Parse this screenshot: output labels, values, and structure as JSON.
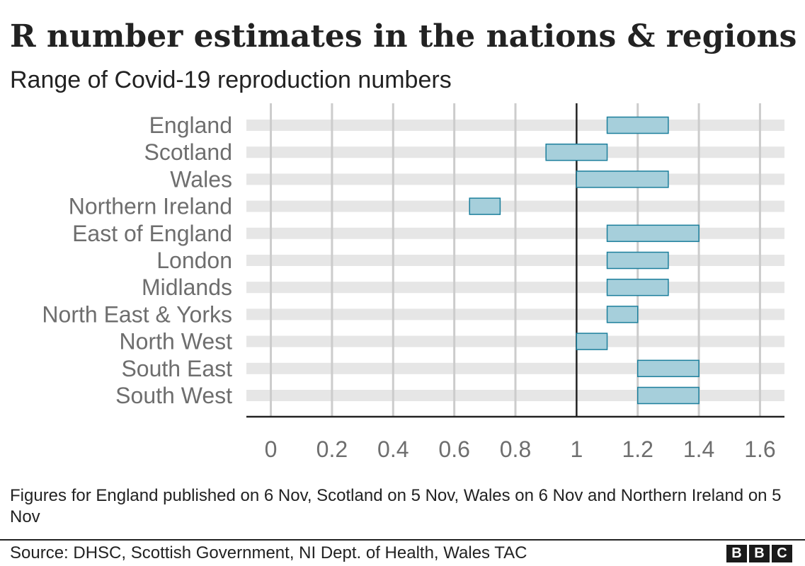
{
  "chart_data": {
    "type": "range-bar",
    "title": "R number estimates in the nations & regions",
    "subtitle": "Range of Covid-19 reproduction numbers",
    "categories": [
      "England",
      "Scotland",
      "Wales",
      "Northern Ireland",
      "East of England",
      "London",
      "Midlands",
      "North East & Yorks",
      "North West",
      "South East",
      "South West"
    ],
    "ranges": [
      {
        "low": 1.1,
        "high": 1.3
      },
      {
        "low": 0.9,
        "high": 1.1
      },
      {
        "low": 1.0,
        "high": 1.3
      },
      {
        "low": 0.65,
        "high": 0.75
      },
      {
        "low": 1.1,
        "high": 1.4
      },
      {
        "low": 1.1,
        "high": 1.3
      },
      {
        "low": 1.1,
        "high": 1.3
      },
      {
        "low": 1.1,
        "high": 1.2
      },
      {
        "low": 1.0,
        "high": 1.1
      },
      {
        "low": 1.2,
        "high": 1.4
      },
      {
        "low": 1.2,
        "high": 1.4
      }
    ],
    "xlim": [
      -0.08,
      1.68
    ],
    "xticks": [
      0,
      0.2,
      0.4,
      0.6,
      0.8,
      1,
      1.2,
      1.4,
      1.6
    ],
    "xtick_labels": [
      "0",
      "0.2",
      "0.4",
      "0.6",
      "0.8",
      "1",
      "1.2",
      "1.4",
      "1.6"
    ],
    "reference_line": 1,
    "grid": true,
    "colors": {
      "bar_fill": "#a6cfdb",
      "bar_stroke": "#1c7f9c",
      "row_band": "#e6e6e6",
      "grid": "#cccccc",
      "reference": "#222222",
      "label": "#6e6e6e"
    }
  },
  "note": "Figures for England published on 6 Nov, Scotland on 5 Nov, Wales on 6 Nov and Northern Ireland on 5 Nov",
  "source": "Source: DHSC, Scottish Government, NI Dept. of Health, Wales TAC",
  "logo": {
    "letters": [
      "B",
      "B",
      "C"
    ]
  }
}
